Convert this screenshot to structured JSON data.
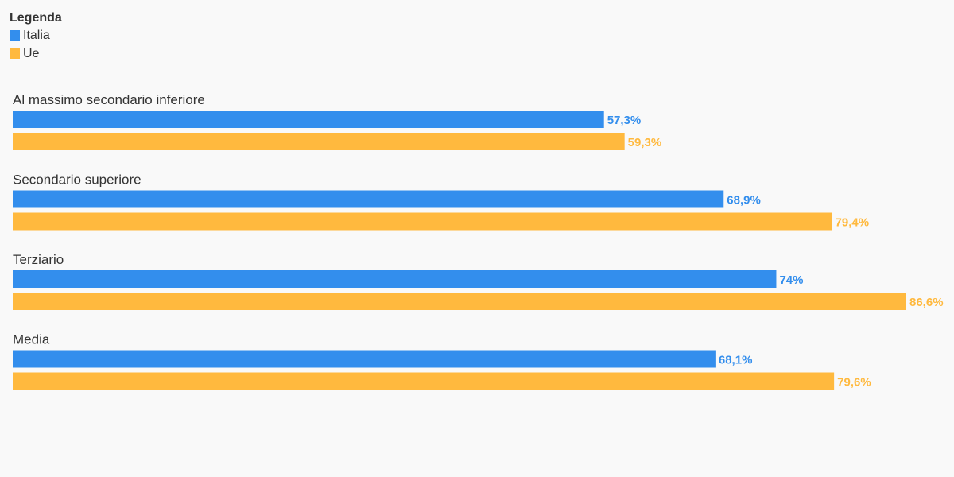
{
  "legend": {
    "title": "Legenda",
    "items": [
      {
        "name": "Italia",
        "color": "#338eed"
      },
      {
        "name": "Ue",
        "color": "#ffb93e"
      }
    ]
  },
  "chart_data": {
    "type": "bar",
    "orientation": "horizontal",
    "categories": [
      "Al massimo secondario inferiore",
      "Secondario superiore",
      "Terziario",
      "Media"
    ],
    "series": [
      {
        "name": "Italia",
        "color": "#338eed",
        "values": [
          57.3,
          68.9,
          74,
          68.1
        ],
        "labels": [
          "57,3%",
          "68,9%",
          "74%",
          "68,1%"
        ]
      },
      {
        "name": "Ue",
        "color": "#ffb93e",
        "values": [
          59.3,
          79.4,
          86.6,
          79.6
        ],
        "labels": [
          "59,3%",
          "79,4%",
          "86,6%",
          "79,6%"
        ]
      }
    ],
    "xlim": [
      0,
      86.6
    ],
    "grid": false,
    "legend_position": "top-left"
  }
}
